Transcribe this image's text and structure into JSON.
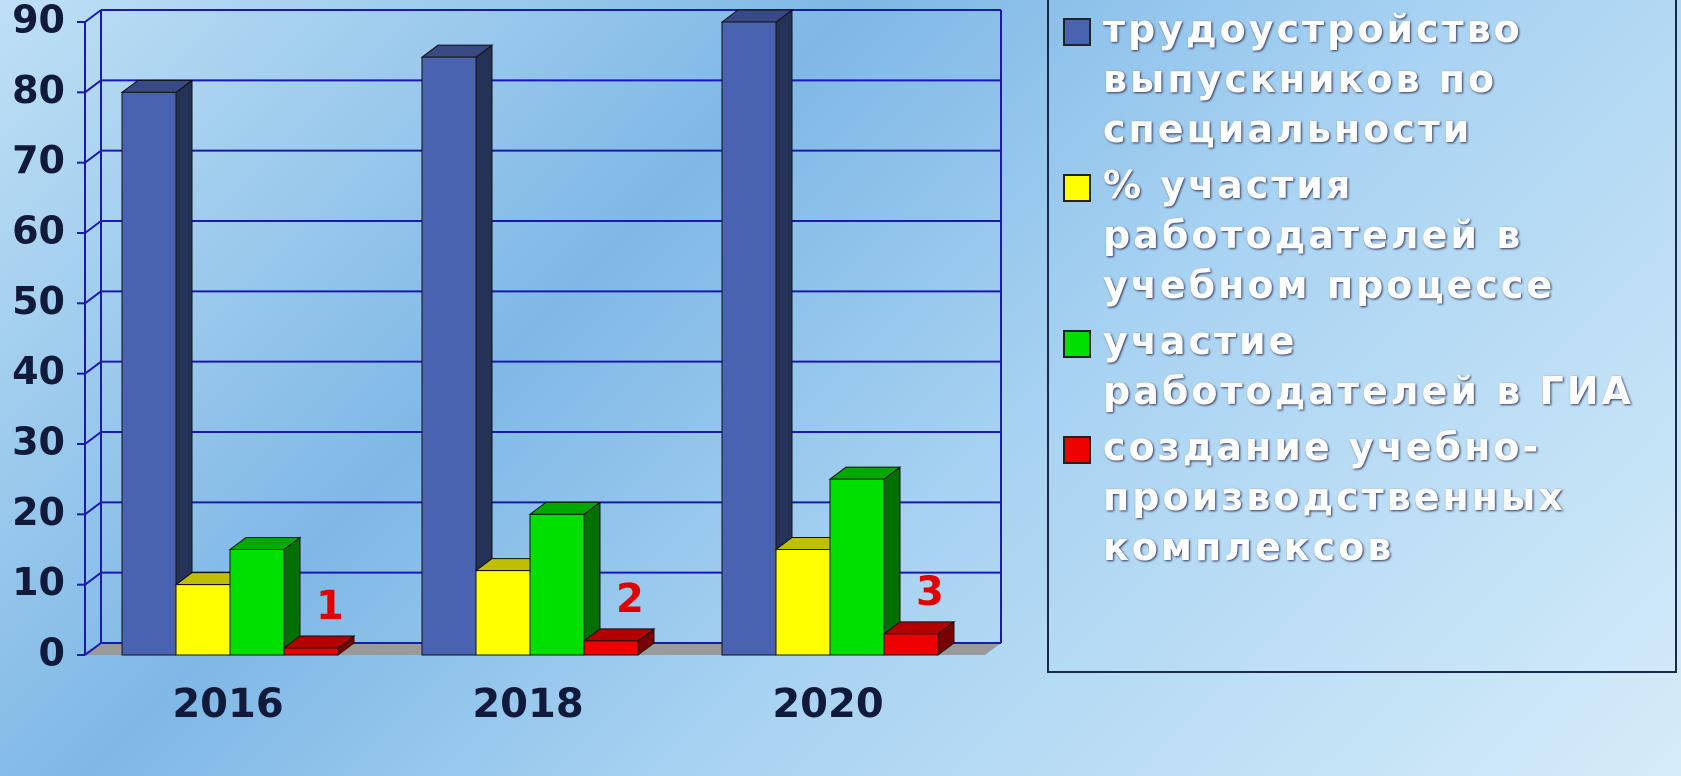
{
  "chart_data": {
    "type": "bar3d",
    "categories": [
      "2016",
      "2018",
      "2020"
    ],
    "series": [
      {
        "name": "трудоустройство выпускников по специальности",
        "color": "#4a63b0",
        "values": [
          80,
          85,
          90
        ]
      },
      {
        "name": "% участия работодателей в учебном процессе",
        "color": "#ffff00",
        "values": [
          10,
          12,
          15
        ]
      },
      {
        "name": "участие работодателей в ГИА",
        "color": "#00e000",
        "values": [
          15,
          20,
          25
        ]
      },
      {
        "name": "создание учебно-производственных комплексов",
        "color": "#ee0000",
        "values": [
          1,
          2,
          3
        ],
        "data_labels": true
      }
    ],
    "ylim": [
      0,
      90
    ],
    "yticks": [
      0,
      10,
      20,
      30,
      40,
      50,
      60,
      70,
      80,
      90
    ],
    "grid": true,
    "legend": "right"
  }
}
